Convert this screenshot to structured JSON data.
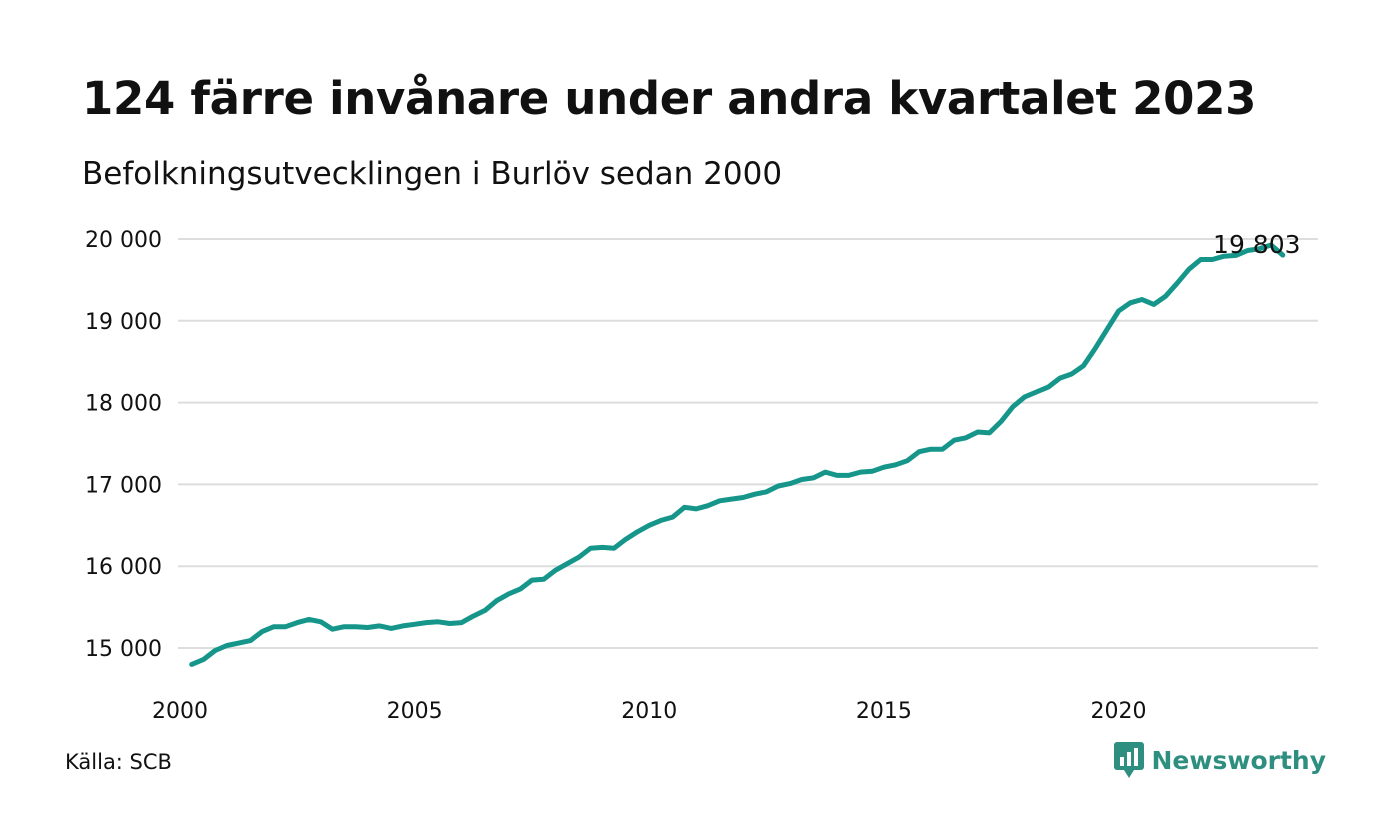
{
  "title": "124 färre invånare under andra kvartalet 2023",
  "subtitle": "Befolkningsutvecklingen i Burlöv sedan 2000",
  "source": "Källa: SCB",
  "brand": {
    "name": "Newsworthy",
    "icon": "bar-chart-badge-icon",
    "color": "#2e8f80"
  },
  "colors": {
    "line": "#16968a",
    "grid": "#dddddd",
    "text": "#111111"
  },
  "chart_data": {
    "type": "line",
    "title": "124 färre invånare under andra kvartalet 2023",
    "subtitle": "Befolkningsutvecklingen i Burlöv sedan 2000",
    "xlabel": "",
    "ylabel": "",
    "xlim": [
      2000,
      2024.25
    ],
    "ylim": [
      14800,
      20000
    ],
    "x_ticks": [
      2000,
      2005,
      2010,
      2015,
      2020
    ],
    "x_tick_labels": [
      "2000",
      "2005",
      "2010",
      "2015",
      "2020"
    ],
    "y_ticks": [
      15000,
      16000,
      17000,
      18000,
      19000,
      20000
    ],
    "y_tick_labels": [
      "15 000",
      "16 000",
      "17 000",
      "18 000",
      "19 000",
      "20 000"
    ],
    "grid": true,
    "legend": "none",
    "annotation": {
      "text": "19 803",
      "x": 2023.5,
      "y": 19803
    },
    "series": [
      {
        "color": "#16968a",
        "x": [
          2000.25,
          2000.5,
          2000.75,
          2001.0,
          2001.25,
          2001.5,
          2001.75,
          2002.0,
          2002.25,
          2002.5,
          2002.75,
          2003.0,
          2003.25,
          2003.5,
          2003.75,
          2004.0,
          2004.25,
          2004.5,
          2004.75,
          2005.0,
          2005.25,
          2005.5,
          2005.75,
          2006.0,
          2006.25,
          2006.5,
          2006.75,
          2007.0,
          2007.25,
          2007.5,
          2007.75,
          2008.0,
          2008.25,
          2008.5,
          2008.75,
          2009.0,
          2009.25,
          2009.5,
          2009.75,
          2010.0,
          2010.25,
          2010.5,
          2010.75,
          2011.0,
          2011.25,
          2011.5,
          2011.75,
          2012.0,
          2012.25,
          2012.5,
          2012.75,
          2013.0,
          2013.25,
          2013.5,
          2013.75,
          2014.0,
          2014.25,
          2014.5,
          2014.75,
          2015.0,
          2015.25,
          2015.5,
          2015.75,
          2016.0,
          2016.25,
          2016.5,
          2016.75,
          2017.0,
          2017.25,
          2017.5,
          2017.75,
          2018.0,
          2018.25,
          2018.5,
          2018.75,
          2019.0,
          2019.25,
          2019.5,
          2019.75,
          2020.0,
          2020.25,
          2020.5,
          2020.75,
          2021.0,
          2021.25,
          2021.5,
          2021.75,
          2022.0,
          2022.25,
          2022.5,
          2022.75,
          2023.0,
          2023.25,
          2023.5
        ],
        "values": [
          14800,
          14860,
          14970,
          15030,
          15060,
          15090,
          15200,
          15260,
          15260,
          15310,
          15350,
          15320,
          15230,
          15260,
          15260,
          15250,
          15270,
          15240,
          15270,
          15290,
          15310,
          15320,
          15300,
          15310,
          15390,
          15460,
          15580,
          15660,
          15720,
          15830,
          15840,
          15950,
          16030,
          16110,
          16220,
          16230,
          16220,
          16330,
          16420,
          16500,
          16560,
          16600,
          16720,
          16700,
          16740,
          16800,
          16820,
          16840,
          16880,
          16910,
          16980,
          17010,
          17060,
          17080,
          17150,
          17110,
          17110,
          17150,
          17160,
          17210,
          17240,
          17290,
          17400,
          17430,
          17430,
          17540,
          17570,
          17640,
          17630,
          17770,
          17950,
          18070,
          18130,
          18190,
          18300,
          18350,
          18450,
          18660,
          18890,
          19120,
          19220,
          19260,
          19200,
          19300,
          19460,
          19630,
          19750,
          19750,
          19790,
          19800,
          19860,
          19880,
          19927,
          19803
        ]
      }
    ]
  }
}
